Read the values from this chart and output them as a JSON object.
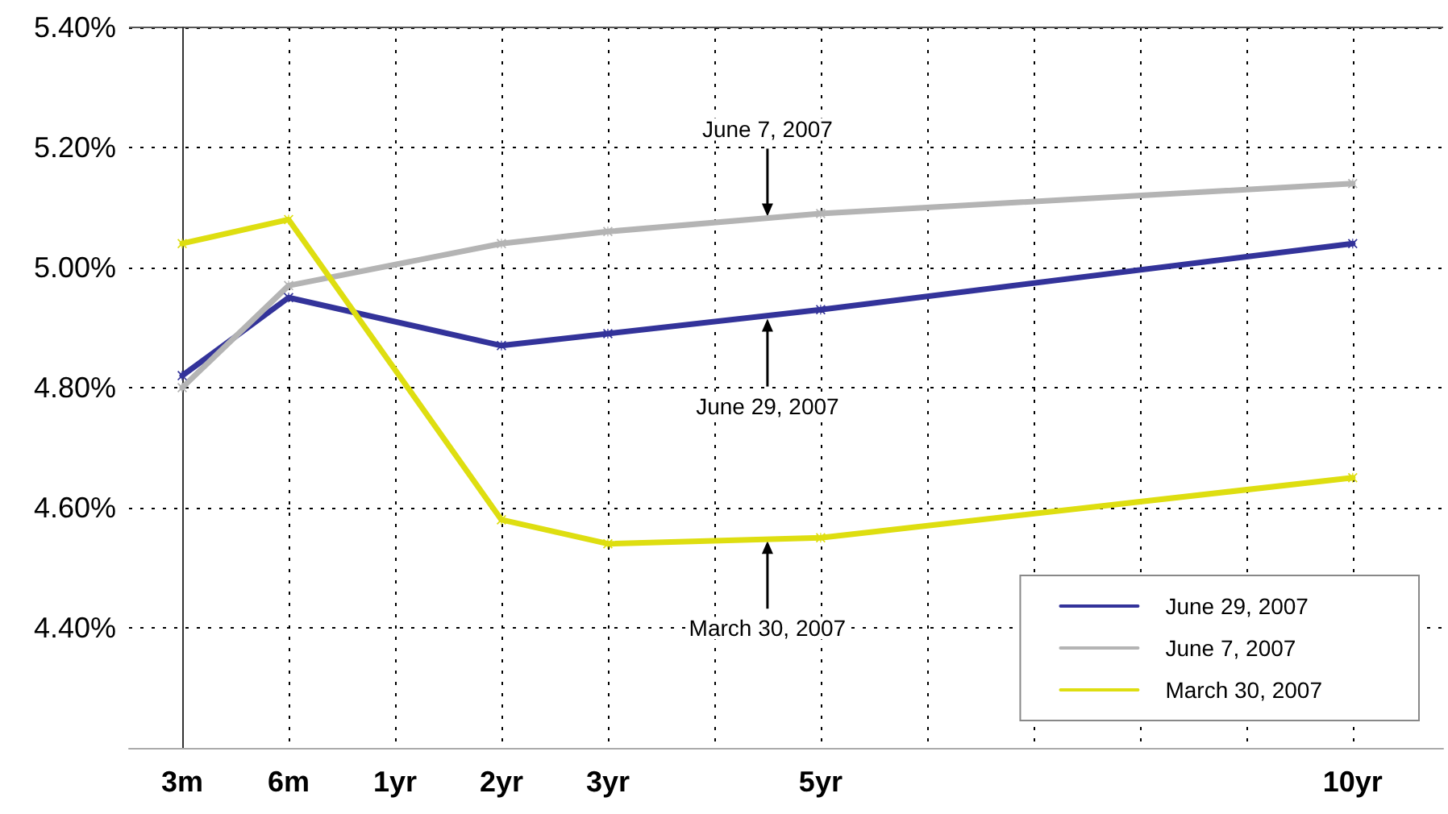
{
  "chart_data": {
    "type": "line",
    "categories": [
      "3m",
      "6m",
      "1yr",
      "2yr",
      "3yr",
      null,
      "5yr",
      null,
      null,
      null,
      null,
      "10yr"
    ],
    "series": [
      {
        "name": "June 29, 2007",
        "color": "#33339a",
        "values": [
          4.82,
          4.95,
          null,
          4.87,
          4.89,
          null,
          4.93,
          null,
          null,
          null,
          null,
          5.04
        ]
      },
      {
        "name": "June 7, 2007",
        "color": "#b4b4b4",
        "values": [
          4.8,
          4.97,
          null,
          5.04,
          5.06,
          null,
          5.09,
          null,
          null,
          null,
          null,
          5.14
        ]
      },
      {
        "name": "March 30, 2007",
        "color": "#dede10",
        "values": [
          5.04,
          5.08,
          null,
          4.58,
          4.54,
          null,
          4.55,
          null,
          null,
          null,
          null,
          4.65
        ]
      }
    ],
    "ylim": [
      4.2,
      5.4
    ],
    "yticks": [
      {
        "value": 4.4,
        "label": "4.40%"
      },
      {
        "value": 4.6,
        "label": "4.60%"
      },
      {
        "value": 4.8,
        "label": "4.80%"
      },
      {
        "value": 5.0,
        "label": "5.00%"
      },
      {
        "value": 5.2,
        "label": "5.20%"
      },
      {
        "value": 5.4,
        "label": "5.40%"
      }
    ],
    "annotations": [
      {
        "text": "June 7, 2007",
        "y": 5.08
      },
      {
        "text": "June 29, 2007",
        "y": 4.92
      },
      {
        "text": "March 30, 2007",
        "y": 4.55
      }
    ],
    "grid": true,
    "legend": "bottom right",
    "marker": "cross",
    "line_style": "solid"
  }
}
